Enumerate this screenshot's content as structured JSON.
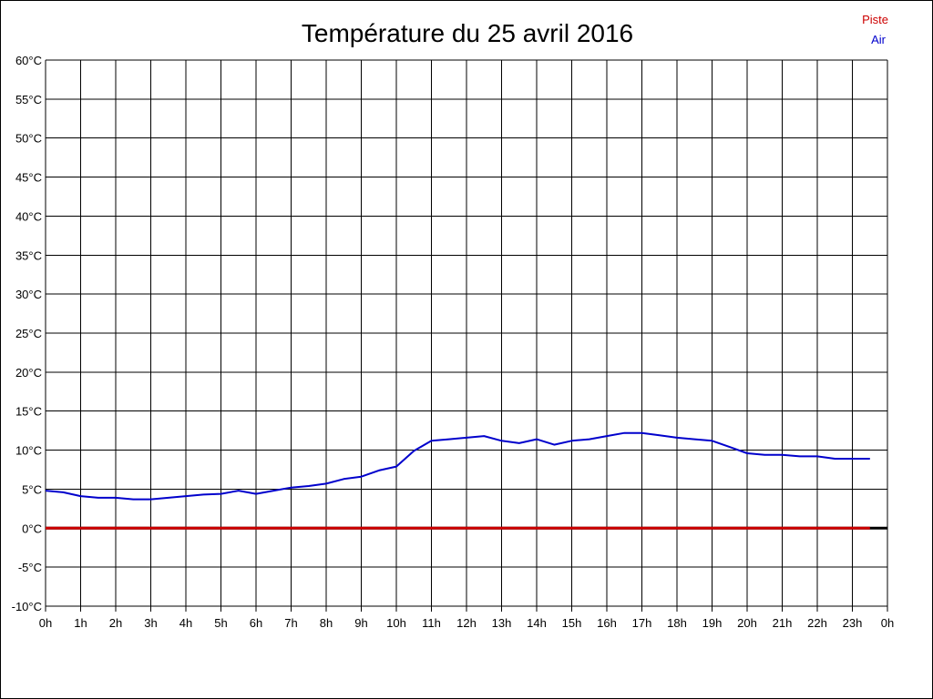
{
  "chart_data": {
    "type": "line",
    "title": "Température du 25 avril 2016",
    "xlabel": "",
    "ylabel": "",
    "x_ticks": [
      "0h",
      "1h",
      "2h",
      "3h",
      "4h",
      "5h",
      "6h",
      "7h",
      "8h",
      "9h",
      "10h",
      "11h",
      "12h",
      "13h",
      "14h",
      "15h",
      "16h",
      "17h",
      "18h",
      "19h",
      "20h",
      "21h",
      "22h",
      "23h",
      "0h"
    ],
    "y_ticks": [
      "-10°C",
      "-5°C",
      "0°C",
      "5°C",
      "10°C",
      "15°C",
      "20°C",
      "25°C",
      "30°C",
      "35°C",
      "40°C",
      "45°C",
      "50°C",
      "55°C",
      "60°C"
    ],
    "xlim": [
      0,
      24
    ],
    "ylim": [
      -10,
      60
    ],
    "grid": true,
    "legend_position": "top-right",
    "series": [
      {
        "name": "Piste",
        "color": "#cc0000",
        "x": [
          0,
          23.5
        ],
        "y": [
          0,
          0
        ]
      },
      {
        "name": "Air",
        "color": "#0000cc",
        "x": [
          0,
          0.5,
          1,
          1.5,
          2,
          2.5,
          3,
          3.5,
          4,
          4.5,
          5,
          5.5,
          6,
          6.5,
          7,
          7.5,
          8,
          8.5,
          9,
          9.5,
          10,
          10.5,
          11,
          11.5,
          12,
          12.5,
          13,
          13.5,
          14,
          14.5,
          15,
          15.5,
          16,
          16.5,
          17,
          17.5,
          18,
          18.5,
          19,
          19.5,
          20,
          20.5,
          21,
          21.5,
          22,
          22.5,
          23,
          23.5
        ],
        "y": [
          4.8,
          4.6,
          4.1,
          3.9,
          3.9,
          3.7,
          3.7,
          3.9,
          4.1,
          4.3,
          4.4,
          4.8,
          4.4,
          4.8,
          5.2,
          5.4,
          5.7,
          6.3,
          6.6,
          7.4,
          7.9,
          9.9,
          11.2,
          11.4,
          11.6,
          11.8,
          11.2,
          10.9,
          11.4,
          10.7,
          11.2,
          11.4,
          11.8,
          12.2,
          12.2,
          11.9,
          11.6,
          11.4,
          11.2,
          10.4,
          9.6,
          9.4,
          9.4,
          9.2,
          9.2,
          8.9,
          8.9,
          8.9
        ]
      }
    ]
  }
}
